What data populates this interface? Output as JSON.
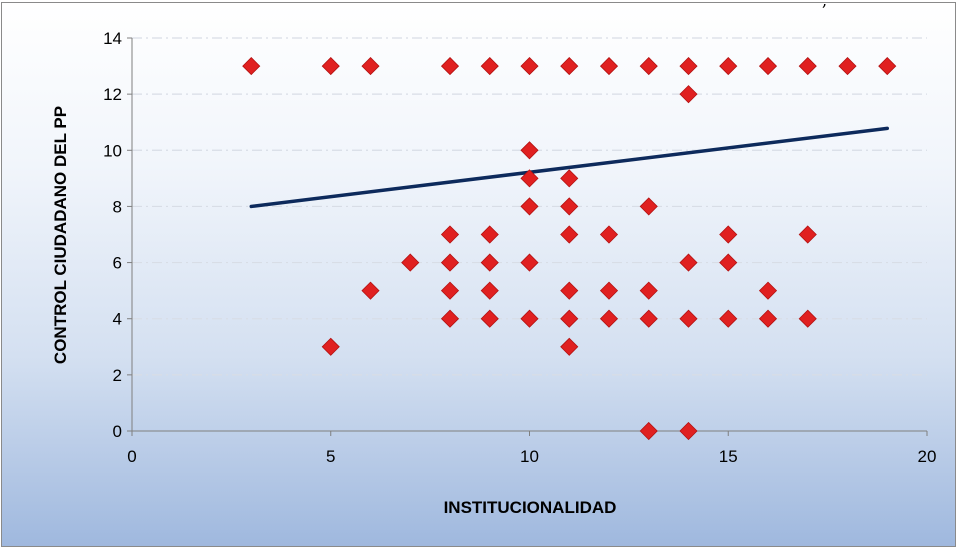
{
  "top_fragment": ",",
  "chart_data": {
    "type": "scatter",
    "title": "",
    "xlabel": "INSTITUCIONALIDAD",
    "ylabel": "CONTROL CIUDADANO DEL PP",
    "xlim": [
      0,
      20
    ],
    "ylim": [
      0,
      14
    ],
    "x_ticks": [
      0,
      5,
      10,
      15,
      20
    ],
    "y_ticks": [
      0,
      2,
      4,
      6,
      8,
      10,
      12,
      14
    ],
    "grid": "horizontal dashed",
    "marker_color": "#e02020",
    "trendline_color": "#0d2a5c",
    "points": [
      [
        3,
        13
      ],
      [
        5,
        13
      ],
      [
        6,
        13
      ],
      [
        8,
        13
      ],
      [
        9,
        13
      ],
      [
        10,
        13
      ],
      [
        11,
        13
      ],
      [
        12,
        13
      ],
      [
        13,
        13
      ],
      [
        14,
        13
      ],
      [
        15,
        13
      ],
      [
        16,
        13
      ],
      [
        17,
        13
      ],
      [
        18,
        13
      ],
      [
        19,
        13
      ],
      [
        14,
        12
      ],
      [
        10,
        10
      ],
      [
        10,
        9
      ],
      [
        11,
        9
      ],
      [
        10,
        8
      ],
      [
        11,
        8
      ],
      [
        13,
        8
      ],
      [
        8,
        7
      ],
      [
        9,
        7
      ],
      [
        11,
        7
      ],
      [
        12,
        7
      ],
      [
        15,
        7
      ],
      [
        17,
        7
      ],
      [
        7,
        6
      ],
      [
        8,
        6
      ],
      [
        9,
        6
      ],
      [
        10,
        6
      ],
      [
        14,
        6
      ],
      [
        15,
        6
      ],
      [
        6,
        5
      ],
      [
        8,
        5
      ],
      [
        9,
        5
      ],
      [
        11,
        5
      ],
      [
        12,
        5
      ],
      [
        13,
        5
      ],
      [
        16,
        5
      ],
      [
        8,
        4
      ],
      [
        9,
        4
      ],
      [
        10,
        4
      ],
      [
        11,
        4
      ],
      [
        12,
        4
      ],
      [
        13,
        4
      ],
      [
        14,
        4
      ],
      [
        15,
        4
      ],
      [
        16,
        4
      ],
      [
        17,
        4
      ],
      [
        5,
        3
      ],
      [
        11,
        3
      ],
      [
        13,
        0
      ],
      [
        14,
        0
      ]
    ],
    "trendline": [
      [
        3,
        8.0
      ],
      [
        19,
        10.78
      ]
    ]
  }
}
